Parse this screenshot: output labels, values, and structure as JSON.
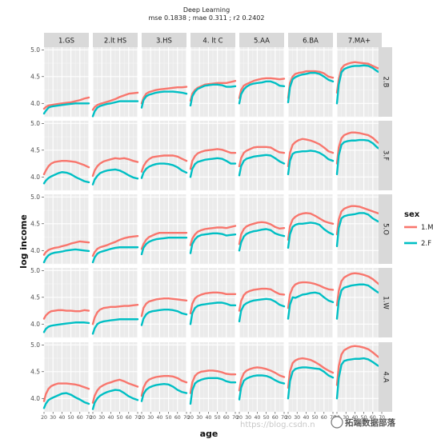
{
  "chart_data": {
    "type": "line",
    "title": "Deep Learning",
    "subtitle": "mse 0.1838 ; mae 0.311 ; r2 0.2402",
    "xlabel": "age",
    "ylabel": "log income",
    "xlim": [
      20,
      70
    ],
    "ylim": [
      3.75,
      5.05
    ],
    "x_ticks": [
      "20",
      "30",
      "40",
      "50",
      "60",
      "70"
    ],
    "y_ticks": [
      "4.0",
      "4.5",
      "5.0"
    ],
    "y_tick_values": [
      4.0,
      4.5,
      5.0
    ],
    "grid": true,
    "facet_columns": [
      "1.GS",
      "2.lt HS",
      "3.HS",
      "4. lt C",
      "5.AA",
      "6.BA",
      "7.MA+"
    ],
    "facet_rows": [
      "2.B",
      "3.F",
      "5.O",
      "1.W",
      "4.A"
    ],
    "legend": {
      "title": "sex",
      "position": "right",
      "entries": [
        {
          "label": "1.M",
          "color": "#f8766d"
        },
        {
          "label": "2.F",
          "color": "#00bfc4"
        }
      ]
    },
    "x": [
      20,
      22,
      25,
      28,
      32,
      36,
      40,
      45,
      50,
      55,
      60,
      65,
      70
    ],
    "panels": [
      {
        "row": "2.B",
        "col": "1.GS",
        "M": [
          3.9,
          3.93,
          3.96,
          3.97,
          3.98,
          3.99,
          4.0,
          4.01,
          4.02,
          4.04,
          4.06,
          4.09,
          4.11
        ],
        "F": [
          3.81,
          3.86,
          3.92,
          3.94,
          3.95,
          3.96,
          3.97,
          3.98,
          3.99,
          4.0,
          4.0,
          4.0,
          4.0
        ]
      },
      {
        "row": "2.B",
        "col": "2.lt HS",
        "M": [
          3.88,
          3.93,
          3.97,
          3.99,
          4.01,
          4.03,
          4.05,
          4.08,
          4.12,
          4.15,
          4.18,
          4.19,
          4.2
        ],
        "F": [
          3.76,
          3.85,
          3.92,
          3.95,
          3.97,
          3.99,
          4.0,
          4.02,
          4.04,
          4.04,
          4.04,
          4.04,
          4.04
        ]
      },
      {
        "row": "2.B",
        "col": "3.HS",
        "M": [
          4.0,
          4.1,
          4.18,
          4.21,
          4.23,
          4.25,
          4.26,
          4.27,
          4.28,
          4.29,
          4.3,
          4.3,
          4.31
        ],
        "F": [
          3.92,
          4.06,
          4.13,
          4.16,
          4.18,
          4.2,
          4.21,
          4.22,
          4.22,
          4.22,
          4.21,
          4.2,
          4.18
        ]
      },
      {
        "row": "2.B",
        "col": "4. lt C",
        "M": [
          4.05,
          4.18,
          4.25,
          4.29,
          4.32,
          4.35,
          4.36,
          4.37,
          4.38,
          4.38,
          4.38,
          4.4,
          4.42
        ],
        "F": [
          3.96,
          4.13,
          4.22,
          4.27,
          4.3,
          4.33,
          4.34,
          4.35,
          4.35,
          4.34,
          4.31,
          4.31,
          4.32
        ]
      },
      {
        "row": "2.B",
        "col": "5.AA",
        "M": [
          4.1,
          4.25,
          4.33,
          4.36,
          4.39,
          4.42,
          4.44,
          4.46,
          4.47,
          4.47,
          4.46,
          4.45,
          4.46
        ],
        "F": [
          4.0,
          4.17,
          4.26,
          4.31,
          4.35,
          4.37,
          4.38,
          4.39,
          4.41,
          4.41,
          4.38,
          4.33,
          4.32
        ]
      },
      {
        "row": "2.B",
        "col": "6.BA",
        "M": [
          4.1,
          4.38,
          4.5,
          4.55,
          4.57,
          4.58,
          4.6,
          4.6,
          4.6,
          4.59,
          4.56,
          4.5,
          4.48
        ],
        "F": [
          4.02,
          4.3,
          4.45,
          4.49,
          4.52,
          4.54,
          4.55,
          4.57,
          4.57,
          4.55,
          4.5,
          4.44,
          4.41
        ]
      },
      {
        "row": "2.B",
        "col": "7.MA+",
        "M": [
          4.2,
          4.45,
          4.65,
          4.71,
          4.74,
          4.76,
          4.77,
          4.76,
          4.75,
          4.74,
          4.7,
          4.66,
          4.64
        ],
        "F": [
          4.0,
          4.35,
          4.58,
          4.64,
          4.67,
          4.69,
          4.7,
          4.7,
          4.71,
          4.7,
          4.66,
          4.6,
          4.56
        ]
      },
      {
        "row": "3.F",
        "col": "1.GS",
        "M": [
          4.05,
          4.12,
          4.2,
          4.25,
          4.28,
          4.29,
          4.3,
          4.3,
          4.29,
          4.28,
          4.25,
          4.22,
          4.18
        ],
        "F": [
          3.88,
          3.93,
          3.98,
          4.01,
          4.04,
          4.07,
          4.09,
          4.08,
          4.05,
          4.0,
          3.96,
          3.92,
          3.9
        ]
      },
      {
        "row": "3.F",
        "col": "2.lt HS",
        "M": [
          4.02,
          4.12,
          4.2,
          4.25,
          4.29,
          4.31,
          4.33,
          4.35,
          4.34,
          4.35,
          4.33,
          4.3,
          4.28
        ],
        "F": [
          3.86,
          3.95,
          4.02,
          4.07,
          4.1,
          4.12,
          4.13,
          4.14,
          4.12,
          4.08,
          4.03,
          3.99,
          3.97
        ]
      },
      {
        "row": "3.F",
        "col": "3.HS",
        "M": [
          4.1,
          4.2,
          4.28,
          4.33,
          4.37,
          4.38,
          4.39,
          4.4,
          4.4,
          4.4,
          4.38,
          4.34,
          4.3
        ],
        "F": [
          3.98,
          4.08,
          4.15,
          4.19,
          4.22,
          4.24,
          4.25,
          4.25,
          4.24,
          4.22,
          4.18,
          4.12,
          4.08
        ]
      },
      {
        "row": "3.F",
        "col": "4. lt C",
        "M": [
          4.15,
          4.3,
          4.39,
          4.44,
          4.47,
          4.49,
          4.5,
          4.51,
          4.52,
          4.51,
          4.48,
          4.45,
          4.45
        ],
        "F": [
          4.0,
          4.15,
          4.24,
          4.28,
          4.3,
          4.32,
          4.33,
          4.34,
          4.35,
          4.34,
          4.3,
          4.25,
          4.25
        ]
      },
      {
        "row": "3.F",
        "col": "5.AA",
        "M": [
          4.2,
          4.35,
          4.45,
          4.49,
          4.52,
          4.55,
          4.56,
          4.56,
          4.56,
          4.55,
          4.5,
          4.46,
          4.45
        ],
        "F": [
          4.03,
          4.2,
          4.3,
          4.34,
          4.36,
          4.38,
          4.39,
          4.4,
          4.41,
          4.4,
          4.35,
          4.29,
          4.25
        ]
      },
      {
        "row": "3.F",
        "col": "6.BA",
        "M": [
          4.2,
          4.45,
          4.6,
          4.65,
          4.69,
          4.71,
          4.7,
          4.68,
          4.65,
          4.61,
          4.55,
          4.48,
          4.45
        ],
        "F": [
          4.05,
          4.3,
          4.43,
          4.46,
          4.47,
          4.48,
          4.48,
          4.49,
          4.48,
          4.45,
          4.4,
          4.33,
          4.3
        ]
      },
      {
        "row": "3.F",
        "col": "7.MA+",
        "M": [
          4.25,
          4.55,
          4.72,
          4.78,
          4.81,
          4.83,
          4.83,
          4.82,
          4.8,
          4.78,
          4.73,
          4.65,
          4.6
        ],
        "F": [
          4.05,
          4.4,
          4.6,
          4.65,
          4.67,
          4.68,
          4.68,
          4.69,
          4.69,
          4.68,
          4.63,
          4.55,
          4.5
        ]
      },
      {
        "row": "5.O",
        "col": "1.GS",
        "M": [
          3.92,
          3.97,
          4.01,
          4.03,
          4.05,
          4.06,
          4.08,
          4.1,
          4.13,
          4.15,
          4.17,
          4.16,
          4.15
        ],
        "F": [
          3.78,
          3.85,
          3.91,
          3.94,
          3.96,
          3.97,
          3.98,
          4.0,
          4.01,
          4.02,
          4.01,
          4.0,
          3.99
        ]
      },
      {
        "row": "5.O",
        "col": "2.lt HS",
        "M": [
          3.9,
          3.97,
          4.03,
          4.06,
          4.08,
          4.1,
          4.13,
          4.16,
          4.2,
          4.23,
          4.25,
          4.26,
          4.27
        ],
        "F": [
          3.78,
          3.87,
          3.94,
          3.97,
          3.99,
          4.01,
          4.03,
          4.05,
          4.06,
          4.06,
          4.06,
          4.06,
          4.06
        ]
      },
      {
        "row": "5.O",
        "col": "3.HS",
        "M": [
          4.03,
          4.12,
          4.2,
          4.25,
          4.28,
          4.31,
          4.33,
          4.33,
          4.33,
          4.33,
          4.33,
          4.33,
          4.33
        ],
        "F": [
          3.93,
          4.05,
          4.12,
          4.16,
          4.19,
          4.21,
          4.22,
          4.23,
          4.24,
          4.24,
          4.24,
          4.24,
          4.24
        ]
      },
      {
        "row": "5.O",
        "col": "4. lt C",
        "M": [
          4.1,
          4.22,
          4.3,
          4.35,
          4.38,
          4.4,
          4.41,
          4.42,
          4.43,
          4.43,
          4.42,
          4.44,
          4.46
        ],
        "F": [
          3.95,
          4.12,
          4.21,
          4.26,
          4.29,
          4.3,
          4.31,
          4.32,
          4.32,
          4.31,
          4.28,
          4.29,
          4.3
        ]
      },
      {
        "row": "5.O",
        "col": "5.AA",
        "M": [
          4.12,
          4.3,
          4.4,
          4.45,
          4.48,
          4.5,
          4.52,
          4.53,
          4.52,
          4.49,
          4.44,
          4.41,
          4.42
        ],
        "F": [
          4.0,
          4.15,
          4.26,
          4.31,
          4.34,
          4.36,
          4.37,
          4.39,
          4.4,
          4.38,
          4.32,
          4.29,
          4.27
        ]
      },
      {
        "row": "5.O",
        "col": "6.BA",
        "M": [
          4.2,
          4.45,
          4.58,
          4.63,
          4.67,
          4.69,
          4.7,
          4.69,
          4.65,
          4.6,
          4.55,
          4.52,
          4.5
        ],
        "F": [
          4.05,
          4.3,
          4.44,
          4.48,
          4.5,
          4.5,
          4.51,
          4.52,
          4.51,
          4.48,
          4.4,
          4.34,
          4.3
        ]
      },
      {
        "row": "5.O",
        "col": "7.MA+",
        "M": [
          4.3,
          4.58,
          4.73,
          4.78,
          4.81,
          4.83,
          4.83,
          4.82,
          4.79,
          4.76,
          4.73,
          4.7,
          4.68
        ],
        "F": [
          4.08,
          4.42,
          4.6,
          4.64,
          4.66,
          4.67,
          4.68,
          4.7,
          4.7,
          4.67,
          4.6,
          4.55,
          4.52
        ]
      },
      {
        "row": "1.W",
        "col": "1.GS",
        "M": [
          4.1,
          4.16,
          4.21,
          4.24,
          4.25,
          4.26,
          4.26,
          4.25,
          4.25,
          4.24,
          4.24,
          4.26,
          4.25
        ],
        "F": [
          3.85,
          3.91,
          3.95,
          3.97,
          3.98,
          3.99,
          4.0,
          4.01,
          4.02,
          4.03,
          4.03,
          4.03,
          4.02
        ]
      },
      {
        "row": "1.W",
        "col": "2.lt HS",
        "M": [
          4.0,
          4.12,
          4.22,
          4.27,
          4.3,
          4.31,
          4.32,
          4.32,
          4.33,
          4.34,
          4.34,
          4.35,
          4.36
        ],
        "F": [
          3.82,
          3.92,
          4.0,
          4.03,
          4.05,
          4.06,
          4.07,
          4.08,
          4.09,
          4.09,
          4.09,
          4.09,
          4.09
        ]
      },
      {
        "row": "1.W",
        "col": "3.HS",
        "M": [
          4.15,
          4.3,
          4.38,
          4.42,
          4.44,
          4.46,
          4.47,
          4.48,
          4.48,
          4.47,
          4.46,
          4.45,
          4.44
        ],
        "F": [
          3.98,
          4.1,
          4.18,
          4.22,
          4.24,
          4.25,
          4.26,
          4.27,
          4.27,
          4.26,
          4.24,
          4.2,
          4.18
        ]
      },
      {
        "row": "1.W",
        "col": "4. lt C",
        "M": [
          4.2,
          4.38,
          4.48,
          4.52,
          4.55,
          4.57,
          4.58,
          4.59,
          4.59,
          4.58,
          4.56,
          4.56,
          4.56
        ],
        "F": [
          4.0,
          4.2,
          4.3,
          4.34,
          4.36,
          4.37,
          4.38,
          4.39,
          4.4,
          4.4,
          4.38,
          4.35,
          4.35
        ]
      },
      {
        "row": "1.W",
        "col": "5.AA",
        "M": [
          4.25,
          4.43,
          4.54,
          4.59,
          4.62,
          4.64,
          4.65,
          4.66,
          4.66,
          4.65,
          4.6,
          4.56,
          4.55
        ],
        "F": [
          4.05,
          4.25,
          4.35,
          4.39,
          4.42,
          4.44,
          4.45,
          4.46,
          4.47,
          4.46,
          4.42,
          4.36,
          4.33
        ]
      },
      {
        "row": "1.W",
        "col": "6.BA",
        "M": [
          4.3,
          4.55,
          4.68,
          4.74,
          4.77,
          4.78,
          4.78,
          4.77,
          4.75,
          4.72,
          4.68,
          4.65,
          4.64
        ],
        "F": [
          4.1,
          4.36,
          4.5,
          4.49,
          4.52,
          4.55,
          4.56,
          4.58,
          4.59,
          4.57,
          4.5,
          4.44,
          4.41
        ]
      },
      {
        "row": "1.W",
        "col": "7.MA+",
        "M": [
          4.35,
          4.62,
          4.8,
          4.87,
          4.91,
          4.94,
          4.95,
          4.94,
          4.92,
          4.89,
          4.84,
          4.77,
          4.7
        ],
        "F": [
          4.1,
          4.43,
          4.63,
          4.68,
          4.7,
          4.72,
          4.73,
          4.74,
          4.74,
          4.72,
          4.66,
          4.6,
          4.56
        ]
      },
      {
        "row": "4.A",
        "col": "1.GS",
        "M": [
          3.95,
          4.08,
          4.18,
          4.23,
          4.26,
          4.28,
          4.28,
          4.28,
          4.27,
          4.26,
          4.24,
          4.21,
          4.18
        ],
        "F": [
          3.82,
          3.9,
          3.97,
          4.0,
          4.03,
          4.06,
          4.09,
          4.1,
          4.07,
          4.02,
          3.98,
          3.93,
          3.9
        ]
      },
      {
        "row": "4.A",
        "col": "2.lt HS",
        "M": [
          3.92,
          4.05,
          4.15,
          4.21,
          4.25,
          4.28,
          4.3,
          4.33,
          4.35,
          4.32,
          4.28,
          4.25,
          4.22
        ],
        "F": [
          3.8,
          3.92,
          4.0,
          4.05,
          4.09,
          4.12,
          4.14,
          4.16,
          4.15,
          4.1,
          4.04,
          4.0,
          3.97
        ]
      },
      {
        "row": "4.A",
        "col": "3.HS",
        "M": [
          4.05,
          4.2,
          4.3,
          4.35,
          4.38,
          4.4,
          4.41,
          4.42,
          4.42,
          4.41,
          4.38,
          4.33,
          4.3
        ],
        "F": [
          3.95,
          4.08,
          4.16,
          4.2,
          4.23,
          4.25,
          4.26,
          4.27,
          4.26,
          4.22,
          4.16,
          4.12,
          4.1
        ]
      },
      {
        "row": "4.A",
        "col": "4. lt C",
        "M": [
          4.1,
          4.3,
          4.42,
          4.47,
          4.5,
          4.51,
          4.52,
          4.52,
          4.51,
          4.49,
          4.46,
          4.45,
          4.45
        ],
        "F": [
          3.9,
          4.15,
          4.28,
          4.32,
          4.35,
          4.37,
          4.38,
          4.38,
          4.38,
          4.36,
          4.32,
          4.3,
          4.3
        ]
      },
      {
        "row": "4.A",
        "col": "5.AA",
        "M": [
          4.15,
          4.35,
          4.47,
          4.52,
          4.55,
          4.57,
          4.58,
          4.57,
          4.55,
          4.52,
          4.48,
          4.43,
          4.4
        ],
        "F": [
          3.98,
          4.2,
          4.33,
          4.37,
          4.4,
          4.42,
          4.43,
          4.43,
          4.42,
          4.39,
          4.34,
          4.3,
          4.28
        ]
      },
      {
        "row": "4.A",
        "col": "6.BA",
        "M": [
          4.2,
          4.5,
          4.66,
          4.71,
          4.74,
          4.75,
          4.74,
          4.72,
          4.68,
          4.63,
          4.57,
          4.52,
          4.48
        ],
        "F": [
          4.0,
          4.32,
          4.5,
          4.55,
          4.57,
          4.58,
          4.58,
          4.57,
          4.56,
          4.55,
          4.5,
          4.43,
          4.39
        ]
      },
      {
        "row": "4.A",
        "col": "7.MA+",
        "M": [
          4.25,
          4.6,
          4.82,
          4.9,
          4.94,
          4.97,
          4.98,
          4.97,
          4.95,
          4.92,
          4.86,
          4.79,
          4.73
        ],
        "F": [
          4.0,
          4.38,
          4.63,
          4.7,
          4.72,
          4.73,
          4.74,
          4.74,
          4.75,
          4.73,
          4.68,
          4.62,
          4.58
        ]
      }
    ]
  },
  "watermark": "https://blog.csdn.n",
  "brand": "拓端数据部落"
}
